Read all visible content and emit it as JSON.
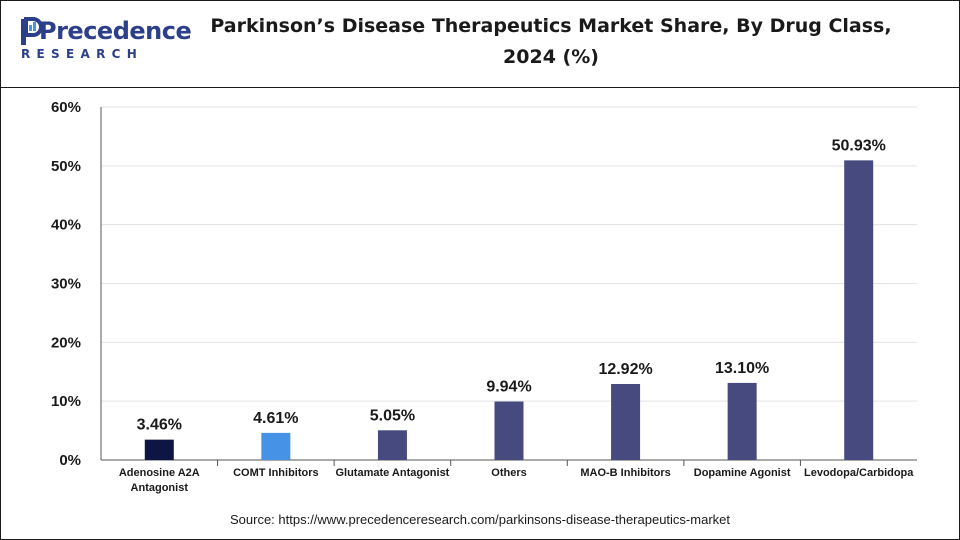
{
  "header": {
    "logo_text": "Precedence",
    "logo_sub": "RESEARCH",
    "title_line1": "Parkinson’s Disease Therapeutics Market  Share, By Drug Class,",
    "title_line2": "2024 (%)"
  },
  "source_text": "Source: https://www.precedenceresearch.com/parkinsons-disease-therapeutics-market",
  "colors": {
    "brand": "#2c3f8a",
    "grid": "#e3e3e3",
    "axis": "#555555",
    "text": "#1a1a1a"
  },
  "chart_data": {
    "type": "bar",
    "title": "Parkinson’s Disease Therapeutics Market  Share, By Drug Class, 2024 (%)",
    "xlabel": "",
    "ylabel": "",
    "ylim": [
      0,
      60
    ],
    "yticks": [
      "0%",
      "10%",
      "20%",
      "30%",
      "40%",
      "50%",
      "60%"
    ],
    "ytick_values": [
      0,
      10,
      20,
      30,
      40,
      50,
      60
    ],
    "grid": true,
    "legend": "none",
    "categories": [
      "Adenosine A2A Antagonist",
      "COMT Inhibitors",
      "Glutamate Antagonist",
      "Others",
      "MAO-B Inhibitors",
      "Dopamine Agonist",
      "Levodopa/Carbidopa"
    ],
    "category_lines": [
      [
        "Adenosine A2A",
        "Antagonist"
      ],
      [
        "COMT Inhibitors"
      ],
      [
        "Glutamate Antagonist"
      ],
      [
        "Others"
      ],
      [
        "MAO-B Inhibitors"
      ],
      [
        "Dopamine Agonist"
      ],
      [
        "Levodopa/Carbidopa"
      ]
    ],
    "values": [
      3.46,
      4.61,
      5.05,
      9.94,
      12.92,
      13.1,
      50.93
    ],
    "value_labels": [
      "3.46%",
      "4.61%",
      "5.05%",
      "9.94%",
      "12.92%",
      "13.10%",
      "50.93%"
    ],
    "bar_colors": [
      "#0d1545",
      "#4592e6",
      "#474a7e",
      "#474a7e",
      "#474a7e",
      "#474a7e",
      "#474a7e"
    ]
  }
}
